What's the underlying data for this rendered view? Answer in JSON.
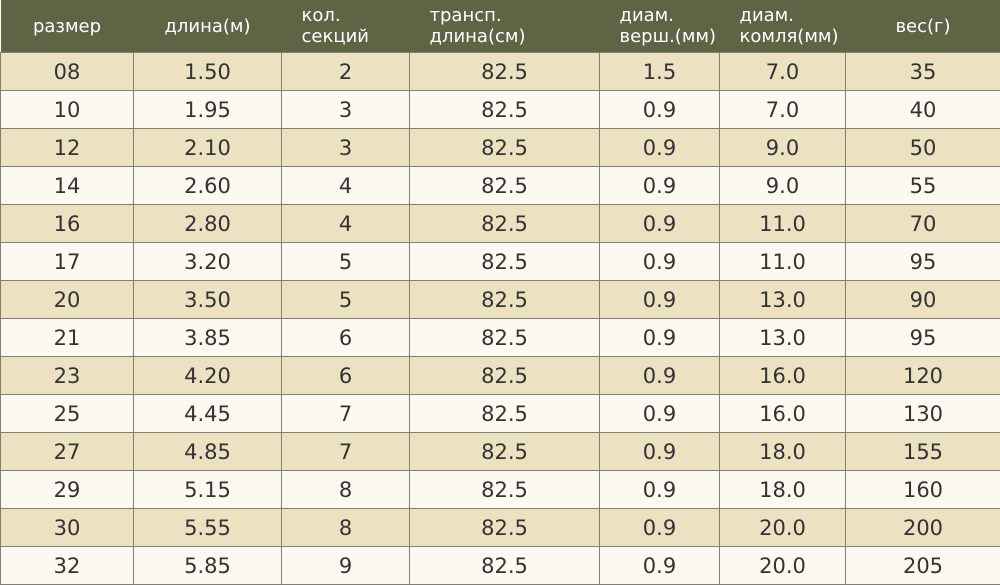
{
  "headers": [
    {
      "lines": [
        "размер"
      ]
    },
    {
      "lines": [
        "длина(м)"
      ]
    },
    {
      "lines": [
        "кол.",
        "секций"
      ]
    },
    {
      "lines": [
        "трансп.",
        "длина(см)"
      ]
    },
    {
      "lines": [
        "диам.",
        "верш.(мм)"
      ]
    },
    {
      "lines": [
        "диам.",
        "комля(мм)"
      ]
    },
    {
      "lines": [
        "вес(г)"
      ]
    }
  ],
  "rows": [
    [
      "08",
      "1.50",
      "2",
      "82.5",
      "1.5",
      "7.0",
      "35"
    ],
    [
      "10",
      "1.95",
      "3",
      "82.5",
      "0.9",
      "7.0",
      "40"
    ],
    [
      "12",
      "2.10",
      "3",
      "82.5",
      "0.9",
      "9.0",
      "50"
    ],
    [
      "14",
      "2.60",
      "4",
      "82.5",
      "0.9",
      "9.0",
      "55"
    ],
    [
      "16",
      "2.80",
      "4",
      "82.5",
      "0.9",
      "11.0",
      "70"
    ],
    [
      "17",
      "3.20",
      "5",
      "82.5",
      "0.9",
      "11.0",
      "95"
    ],
    [
      "20",
      "3.50",
      "5",
      "82.5",
      "0.9",
      "13.0",
      "90"
    ],
    [
      "21",
      "3.85",
      "6",
      "82.5",
      "0.9",
      "13.0",
      "95"
    ],
    [
      "23",
      "4.20",
      "6",
      "82.5",
      "0.9",
      "16.0",
      "120"
    ],
    [
      "25",
      "4.45",
      "7",
      "82.5",
      "0.9",
      "16.0",
      "130"
    ],
    [
      "27",
      "4.85",
      "7",
      "82.5",
      "0.9",
      "18.0",
      "155"
    ],
    [
      "29",
      "5.15",
      "8",
      "82.5",
      "0.9",
      "18.0",
      "160"
    ],
    [
      "30",
      "5.55",
      "8",
      "82.5",
      "0.9",
      "20.0",
      "200"
    ],
    [
      "32",
      "5.85",
      "9",
      "82.5",
      "0.9",
      "20.0",
      "205"
    ]
  ]
}
